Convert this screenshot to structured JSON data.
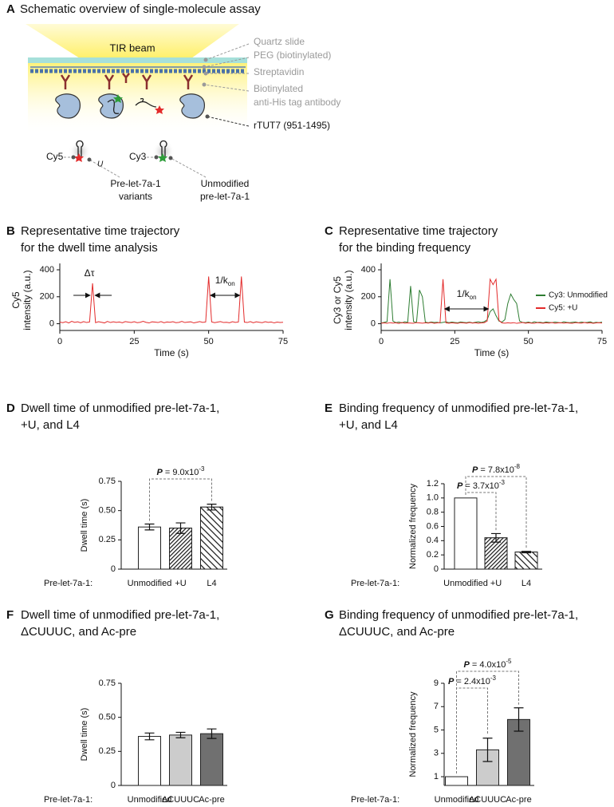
{
  "schematic": {
    "panel": "A",
    "title": "Schematic overview of single-molecule assay",
    "beam": "TIR beam",
    "slide": "Quartz slide",
    "peg": "PEG (biotinylated)",
    "streptavidin": "Streptavidin",
    "antibody": [
      "Biotinylated",
      "anti-His tag antibody"
    ],
    "enzyme": "rTUT7 (951-1495)",
    "cy5": "Cy5",
    "u": "U",
    "variants": [
      "Pre-let-7a-1",
      "variants"
    ],
    "cy3": "Cy3",
    "unmodified": [
      "Unmodified",
      "pre-let-7a-1"
    ]
  },
  "chart_data": [
    {
      "type": "line",
      "panel": "B",
      "title": [
        "Representative time trajectory",
        "for the dwell time analysis"
      ],
      "ylabel": [
        "Cy5",
        "intensity (a.u.)"
      ],
      "xlabel": "Time (s)",
      "color": "#e32b2b",
      "dwell_label": "Δτ",
      "interval_label": {
        "text": "1/k",
        "sub": "on"
      },
      "xlim": [
        0,
        75
      ],
      "xticks": [
        0,
        25,
        50,
        75
      ],
      "ylim": [
        -50,
        400
      ],
      "yticks": [
        0,
        200,
        400
      ],
      "x": [
        0,
        1,
        2,
        3,
        4,
        5,
        6,
        7,
        8,
        9,
        10,
        11,
        12,
        13,
        14,
        15,
        16,
        17,
        18,
        19,
        20,
        21,
        22,
        23,
        24,
        25,
        26,
        27,
        28,
        29,
        30,
        31,
        32,
        33,
        34,
        35,
        36,
        37,
        38,
        39,
        40,
        41,
        42,
        43,
        44,
        45,
        46,
        47,
        48,
        49,
        50,
        51,
        52,
        53,
        54,
        55,
        56,
        57,
        58,
        59,
        60,
        61,
        62,
        63,
        64,
        65,
        66,
        67,
        68,
        69,
        70,
        71,
        72,
        73,
        74,
        75
      ],
      "values": [
        12,
        8,
        15,
        6,
        18,
        10,
        14,
        7,
        16,
        9,
        13,
        300,
        8,
        15,
        11,
        6,
        17,
        9,
        14,
        10,
        13,
        7,
        16,
        12,
        9,
        15,
        8,
        11,
        18,
        10,
        6,
        14,
        12,
        9,
        16,
        7,
        13,
        11,
        15,
        8,
        10,
        17,
        9,
        12,
        14,
        6,
        11,
        16,
        10,
        13,
        350,
        14,
        8,
        12,
        16,
        9,
        11,
        7,
        15,
        10,
        13,
        350,
        12,
        9,
        16,
        7,
        14,
        11,
        8,
        15,
        10,
        13,
        6,
        12,
        9,
        11
      ]
    },
    {
      "type": "line",
      "panel": "C",
      "title": [
        "Representative time trajectory",
        "for the binding frequency"
      ],
      "ylabel": [
        "Cy3 or Cy5",
        "intensity (a.u.)"
      ],
      "xlabel": "Time (s)",
      "interval_label": {
        "text": "1/k",
        "sub": "on"
      },
      "xlim": [
        0,
        75
      ],
      "xticks": [
        0,
        25,
        50,
        75
      ],
      "ylim": [
        -50,
        400
      ],
      "yticks": [
        0,
        200,
        400
      ],
      "x": [
        0,
        1,
        2,
        3,
        4,
        5,
        6,
        7,
        8,
        9,
        10,
        11,
        12,
        13,
        14,
        15,
        16,
        17,
        18,
        19,
        20,
        21,
        22,
        23,
        24,
        25,
        26,
        27,
        28,
        29,
        30,
        31,
        32,
        33,
        34,
        35,
        36,
        37,
        38,
        39,
        40,
        41,
        42,
        43,
        44,
        45,
        46,
        47,
        48,
        49,
        50,
        51,
        52,
        53,
        54,
        55,
        56,
        57,
        58,
        59,
        60,
        61,
        62,
        63,
        64,
        65,
        66,
        67,
        68,
        69,
        70,
        71,
        72,
        73,
        74,
        75
      ],
      "series": [
        {
          "name": "Cy3: Unmodified",
          "color": "#2e7d32",
          "values": [
            5,
            10,
            15,
            330,
            20,
            8,
            12,
            6,
            14,
            10,
            280,
            15,
            9,
            250,
            200,
            12,
            7,
            13,
            9,
            11,
            6,
            10,
            14,
            8,
            12,
            9,
            7,
            13,
            10,
            8,
            12,
            6,
            11,
            14,
            9,
            15,
            30,
            90,
            110,
            60,
            20,
            12,
            30,
            150,
            220,
            180,
            150,
            20,
            10,
            8,
            12,
            6,
            14,
            9,
            11,
            7,
            13,
            10,
            8,
            12,
            9,
            6,
            14,
            10,
            8,
            11,
            13,
            7,
            12,
            9,
            10,
            14,
            6,
            11,
            8,
            12
          ]
        },
        {
          "name": "Cy5: +U",
          "color": "#e32b2b",
          "values": [
            4,
            6,
            3,
            8,
            5,
            7,
            2,
            9,
            4,
            6,
            5,
            3,
            8,
            6,
            4,
            7,
            5,
            9,
            3,
            6,
            8,
            330,
            6,
            4,
            7,
            5,
            3,
            8,
            6,
            4,
            9,
            5,
            7,
            3,
            6,
            8,
            20,
            330,
            290,
            330,
            25,
            6,
            4,
            7,
            5,
            8,
            3,
            6,
            9,
            4,
            7,
            5,
            3,
            8,
            6,
            4,
            7,
            5,
            9,
            3,
            6,
            8,
            4,
            7,
            5,
            3,
            8,
            6,
            4,
            9,
            5,
            7,
            3,
            6,
            8,
            5
          ]
        }
      ]
    },
    {
      "type": "bar",
      "panel": "D",
      "title": [
        "Dwell time of unmodified pre-let-7a-1,",
        "+U, and L4"
      ],
      "ylabel": "Dwell time (s)",
      "xlabel_prefix": "Pre-let-7a-1:",
      "categories": [
        "Unmodified",
        "+U",
        "L4"
      ],
      "values": [
        0.36,
        0.35,
        0.53
      ],
      "errors": [
        0.025,
        0.045,
        0.025
      ],
      "colors": [
        "#ffffff",
        "#ffffff",
        "#ffffff"
      ],
      "hatch": [
        "none",
        "/",
        "\\"
      ],
      "ylim": [
        0,
        0.75
      ],
      "yticks": [
        0,
        0.25,
        {
          "value": 0.5,
          "label": "0.50"
        },
        0.75
      ],
      "annotations": [
        {
          "p": "P",
          "text": "= 9.0x10",
          "exp": "-3"
        }
      ]
    },
    {
      "type": "bar",
      "panel": "E",
      "title": [
        "Binding frequency of unmodified pre-let-7a-1,",
        "+U, and L4"
      ],
      "ylabel": "Normalized frequency",
      "xlabel_prefix": "Pre-let-7a-1:",
      "categories": [
        "Unmodified",
        "+U",
        "L4"
      ],
      "values": [
        1.0,
        0.44,
        0.24
      ],
      "errors": [
        0,
        0.06,
        0.01
      ],
      "colors": [
        "#ffffff",
        "#ffffff",
        "#ffffff"
      ],
      "hatch": [
        "none",
        "/",
        "\\"
      ],
      "ylim": [
        0,
        1.2
      ],
      "yticks": [
        0,
        0.2,
        0.4,
        0.6,
        0.8,
        {
          "value": 1,
          "label": "1.0"
        },
        1.2
      ],
      "annotations": [
        {
          "p": "P",
          "text": "= 7.8x10",
          "exp": "-8"
        },
        {
          "p": "P",
          "text": "= 3.7x10",
          "exp": "-3"
        }
      ]
    },
    {
      "type": "bar",
      "panel": "F",
      "title": [
        "Dwell time of unmodified pre-let-7a-1,",
        "ΔCUUUC, and Ac-pre"
      ],
      "ylabel": "Dwell time (s)",
      "xlabel_prefix": "Pre-let-7a-1:",
      "categories": [
        "Unmodified",
        "ΔCUUUC",
        "Ac-pre"
      ],
      "values": [
        0.36,
        0.37,
        0.38
      ],
      "errors": [
        0.025,
        0.02,
        0.035
      ],
      "colors": [
        "#ffffff",
        "#cccccc",
        "#707070"
      ],
      "hatch": [
        "none",
        "none",
        "none"
      ],
      "ylim": [
        0,
        0.75
      ],
      "yticks": [
        0,
        0.25,
        {
          "value": 0.5,
          "label": "0.50"
        },
        0.75
      ]
    },
    {
      "type": "bar",
      "panel": "G",
      "title": [
        "Binding frequency of unmodified pre-let-7a-1,",
        "ΔCUUUC, and Ac-pre"
      ],
      "ylabel": "Normalized frequency",
      "xlabel_prefix": "Pre-let-7a-1:",
      "categories": [
        "Unmodified",
        "ΔCUUUC",
        "Ac-pre"
      ],
      "values": [
        1.0,
        3.3,
        5.9
      ],
      "errors": [
        0,
        1.0,
        1.0
      ],
      "colors": [
        "#ffffff",
        "#cccccc",
        "#707070"
      ],
      "hatch": [
        "none",
        "none",
        "none"
      ],
      "ylim": [
        0.25,
        9
      ],
      "yticks": [
        1,
        3,
        5,
        7,
        9
      ],
      "annotations": [
        {
          "p": "P",
          "text": "= 4.0x10",
          "exp": "-5"
        },
        {
          "p": "P",
          "text": "= 2.4x10",
          "exp": "-3"
        }
      ]
    }
  ]
}
